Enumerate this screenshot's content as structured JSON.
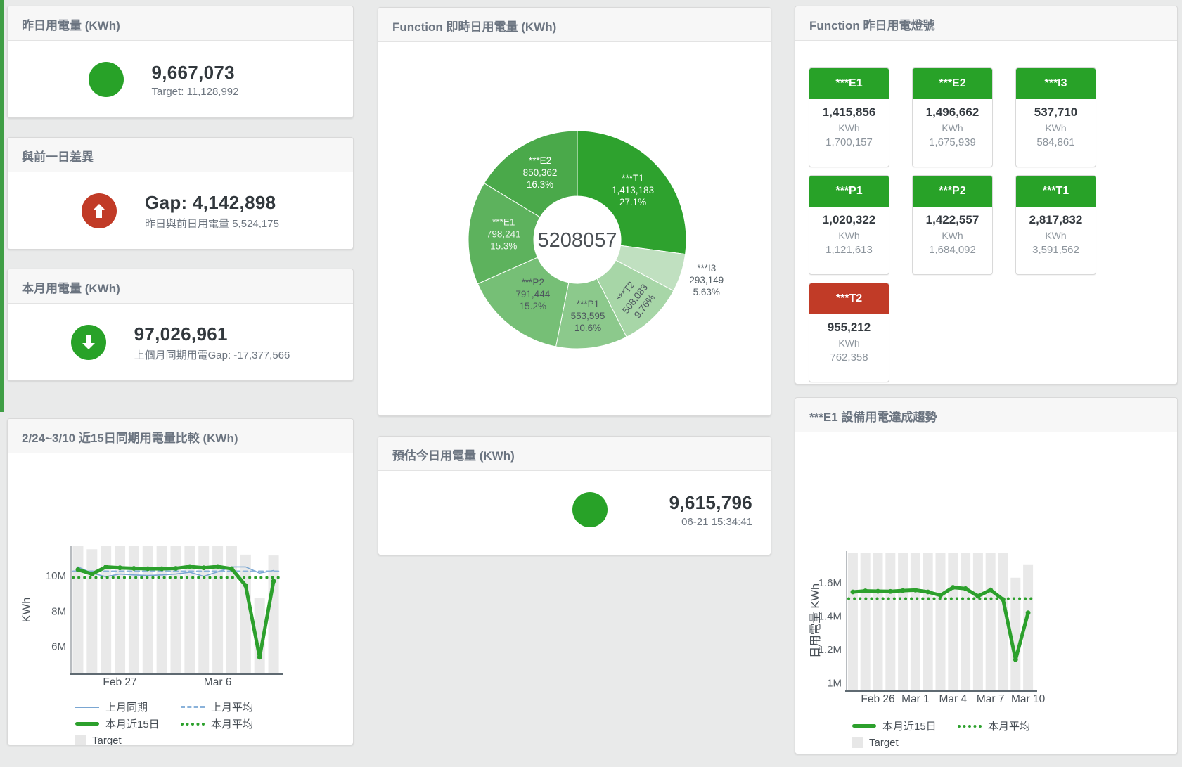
{
  "page": {
    "background": "#e9eaea",
    "sidebar_color": "#3f9e45"
  },
  "colors": {
    "green": "#28a228",
    "red": "#c13b27",
    "chart_green": "#2ca02c",
    "chart_blue": "#7aa6d2",
    "target_gray": "#e9e9e9"
  },
  "cards": {
    "yesterday": {
      "title": "昨日用電量 (KWh)",
      "value": "9,667,073",
      "subtitle": "Target: 11,128,992",
      "status_color": "#28a228"
    },
    "day_gap": {
      "title": "與前一日差異",
      "value": "Gap: 4,142,898",
      "subtitle": "昨日與前日用電量 5,524,175",
      "status_color": "#c13b27",
      "icon": "arrow-up"
    },
    "month": {
      "title": "本月用電量 (KWh)",
      "value": "97,026,961",
      "subtitle": "上個月同期用電Gap: -17,377,566",
      "status_color": "#28a228",
      "icon": "arrow-down"
    },
    "realtime": {
      "title": "Function 即時日用電量 (KWh)"
    },
    "estimate": {
      "title": "預估今日用電量 (KWh)",
      "value": "9,615,796",
      "subtitle": "06-21 15:34:41",
      "status_color": "#28a228"
    },
    "lights": {
      "title": "Function 昨日用電燈號",
      "tiles": [
        {
          "name": "***E1",
          "value": "1,415,856",
          "unit": "KWh",
          "secondary": "1,700,157",
          "status": "green",
          "status_color": "#28a228"
        },
        {
          "name": "***E2",
          "value": "1,496,662",
          "unit": "KWh",
          "secondary": "1,675,939",
          "status": "green",
          "status_color": "#28a228"
        },
        {
          "name": "***I3",
          "value": "537,710",
          "unit": "KWh",
          "secondary": "584,861",
          "status": "green",
          "status_color": "#28a228"
        },
        {
          "name": "***P1",
          "value": "1,020,322",
          "unit": "KWh",
          "secondary": "1,121,613",
          "status": "green",
          "status_color": "#28a228"
        },
        {
          "name": "***P2",
          "value": "1,422,557",
          "unit": "KWh",
          "secondary": "1,684,092",
          "status": "green",
          "status_color": "#28a228"
        },
        {
          "name": "***T1",
          "value": "2,817,832",
          "unit": "KWh",
          "secondary": "3,591,562",
          "status": "green",
          "status_color": "#28a228"
        },
        {
          "name": "***T2",
          "value": "955,212",
          "unit": "KWh",
          "secondary": "762,358",
          "status": "red",
          "status_color": "#c13b27"
        }
      ]
    },
    "comparison": {
      "title": "2/24~3/10 近15日同期用電量比較 (KWh)"
    },
    "trend": {
      "title": "***E1 設備用電達成趨勢"
    }
  },
  "chart_data": [
    {
      "id": "realtime_donut",
      "type": "pie",
      "subtype": "donut",
      "title": "Function 即時日用電量 (KWh)",
      "center_label": "5208057",
      "segments": [
        {
          "name": "***T1",
          "value": 1413183,
          "pct": 27.1,
          "display_value": "1,413,183",
          "display_pct": "27.1%",
          "color": "#2ea22e",
          "label_color": "#ffffff",
          "label_r": 105
        },
        {
          "name": "***I3",
          "value": 293149,
          "pct": 5.63,
          "display_value": "293,149",
          "display_pct": "5.63%",
          "color": "#c0e0c0",
          "label_color": "#555f66",
          "label_r": 193,
          "outside": true
        },
        {
          "name": "***T2",
          "value": 508083,
          "pct": 9.76,
          "display_value": "508,083",
          "display_pct": "9.76%",
          "color": "#a7d6a7",
          "label_color": "#4d565e",
          "label_r": 119,
          "rotate": -52
        },
        {
          "name": "***P1",
          "value": 553595,
          "pct": 10.6,
          "display_value": "553,595",
          "display_pct": "10.6%",
          "color": "#8cc98c",
          "label_color": "#4d565e",
          "label_r": 111
        },
        {
          "name": "***P2",
          "value": 791444,
          "pct": 15.2,
          "display_value": "791,444",
          "display_pct": "15.2%",
          "color": "#76bf76",
          "label_color": "#4d565e",
          "label_r": 101
        },
        {
          "name": "***E1",
          "value": 798241,
          "pct": 15.3,
          "display_value": "798,241",
          "display_pct": "15.3%",
          "color": "#5db25d",
          "label_color": "#f0f6f0",
          "label_r": 105
        },
        {
          "name": "***E2",
          "value": 850362,
          "pct": 16.3,
          "display_value": "850,362",
          "display_pct": "16.3%",
          "color": "#4aa94a",
          "label_color": "#ffffff",
          "label_r": 108
        }
      ]
    },
    {
      "id": "comparison",
      "type": "bar",
      "subtype": "bar-line-combo",
      "title": "2/24~3/10 近15日同期用電量比較 (KWh)",
      "ylabel": "KWh",
      "unit": "millions KWh",
      "ylim": [
        4.48,
        11.67
      ],
      "yticks": [
        {
          "label": "6M",
          "value": 6
        },
        {
          "label": "8M",
          "value": 8
        },
        {
          "label": "10M",
          "value": 10
        }
      ],
      "xticks": [
        {
          "label": "Feb 27",
          "index": 3
        },
        {
          "label": "Mar 6",
          "index": 10
        }
      ],
      "bars": {
        "name": "Target",
        "color": "#e9e9e9",
        "values": [
          11.67,
          11.5,
          11.67,
          11.67,
          11.67,
          11.67,
          11.67,
          11.67,
          11.67,
          11.67,
          11.67,
          11.67,
          11.2,
          8.75,
          11.15
        ]
      },
      "series": [
        {
          "name": "上月同期",
          "color": "#7aa6d2",
          "width": 1.6,
          "values": [
            10.5,
            10.15,
            9.95,
            10.1,
            10.05,
            10.02,
            10.05,
            10.1,
            10.2,
            9.97,
            10.22,
            10.5,
            10.5,
            10.15,
            10.3
          ]
        },
        {
          "name": "上月平均",
          "color": "#8ab2da",
          "width": 2.5,
          "style": "dashed",
          "avg": 10.25
        },
        {
          "name": "本月近15日",
          "color": "#2ca02c",
          "width": 5,
          "markers": true,
          "values": [
            10.35,
            10.1,
            10.5,
            10.45,
            10.42,
            10.4,
            10.4,
            10.42,
            10.52,
            10.45,
            10.52,
            10.4,
            9.45,
            5.4,
            9.7
          ]
        },
        {
          "name": "本月平均",
          "color": "#2ca02c",
          "width": 4,
          "style": "dotted",
          "avg": 9.9
        }
      ],
      "legend": [
        {
          "label": "上月同期",
          "swatch": "line",
          "color": "#7aa6d2"
        },
        {
          "label": "上月平均",
          "swatch": "dash",
          "color": "#8ab2da"
        },
        {
          "label": "本月近15日",
          "swatch": "thick",
          "color": "#2ca02c"
        },
        {
          "label": "本月平均",
          "swatch": "dots",
          "color": "#2ca02c"
        },
        {
          "label": "Target",
          "swatch": "box",
          "color": "#e7e7e7"
        }
      ]
    },
    {
      "id": "e1_trend",
      "type": "bar",
      "subtype": "bar-line-combo",
      "title": "***E1 設備用電達成趨勢",
      "ylabel": "日用電量 KWh",
      "unit": "millions KWh",
      "ylim": [
        0.956,
        1.789
      ],
      "yticks": [
        {
          "label": "1M",
          "value": 1
        },
        {
          "label": "1.2M",
          "value": 1.2
        },
        {
          "label": "1.4M",
          "value": 1.4
        },
        {
          "label": "1.6M",
          "value": 1.6
        }
      ],
      "xticks": [
        {
          "label": "Feb 26",
          "index": 2
        },
        {
          "label": "Mar 1",
          "index": 5
        },
        {
          "label": "Mar 4",
          "index": 8
        },
        {
          "label": "Mar 7",
          "index": 11
        },
        {
          "label": "Mar 10",
          "index": 14
        }
      ],
      "bars": {
        "name": "Target",
        "color": "#e9e9e9",
        "values": [
          1.78,
          1.78,
          1.78,
          1.78,
          1.78,
          1.78,
          1.78,
          1.78,
          1.78,
          1.78,
          1.78,
          1.78,
          1.78,
          1.63,
          1.71
        ]
      },
      "series": [
        {
          "name": "本月近15日",
          "color": "#2ca02c",
          "width": 5,
          "markers": true,
          "values": [
            1.545,
            1.551,
            1.549,
            1.548,
            1.553,
            1.556,
            1.545,
            1.525,
            1.572,
            1.565,
            1.52,
            1.557,
            1.5,
            1.14,
            1.42
          ]
        },
        {
          "name": "本月平均",
          "color": "#2ca02c",
          "width": 4,
          "style": "dotted",
          "avg": 1.505
        }
      ],
      "legend": [
        {
          "label": "本月近15日",
          "swatch": "thick",
          "color": "#2ca02c"
        },
        {
          "label": "本月平均",
          "swatch": "dots",
          "color": "#2ca02c"
        },
        {
          "label": "Target",
          "swatch": "box",
          "color": "#e7e7e7"
        }
      ]
    }
  ]
}
